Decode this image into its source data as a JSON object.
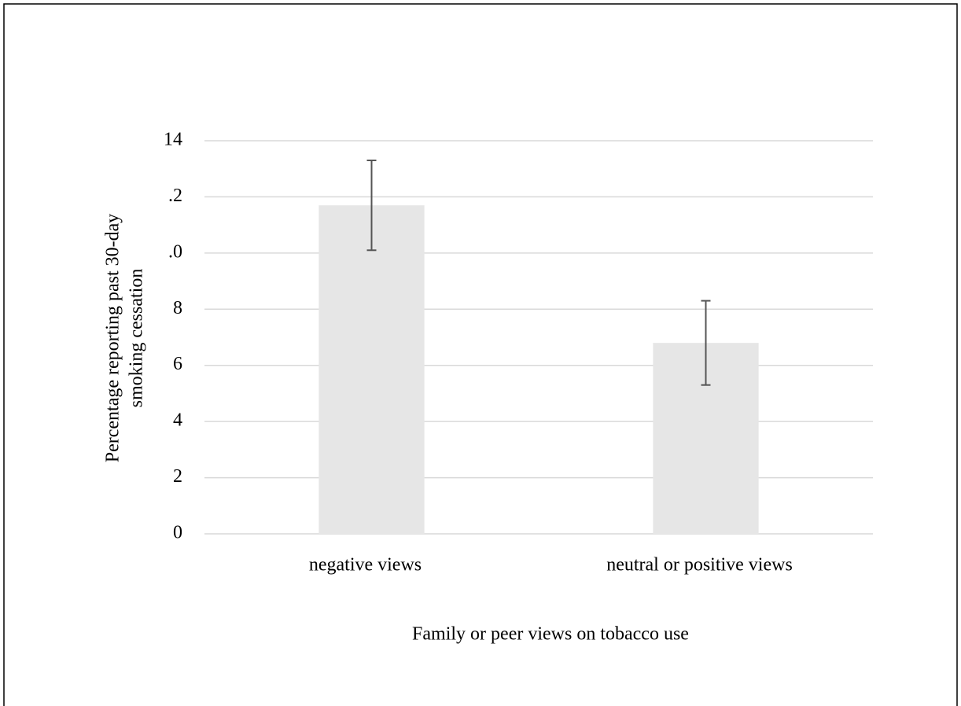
{
  "chart_data": {
    "type": "bar",
    "categories": [
      "negative views",
      "neutral or positive views"
    ],
    "values": [
      11.7,
      6.8
    ],
    "errors": [
      1.6,
      1.5
    ],
    "color": "#e6e6e6",
    "error_color": "#555555",
    "x_label": "Family or peer views on tobacco use",
    "y_label": [
      "Percentage reporting past 30-day",
      "smoking cessation"
    ],
    "ylim": [
      0,
      14
    ],
    "yticks": [
      0,
      2,
      4,
      6,
      8,
      {
        "value": 10,
        "label": ".0"
      },
      {
        "value": 12,
        "label": ".2"
      },
      14
    ],
    "grid": true
  }
}
